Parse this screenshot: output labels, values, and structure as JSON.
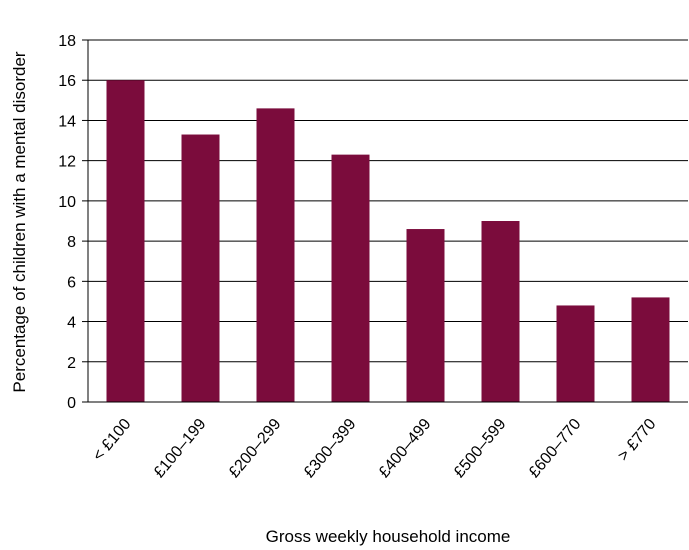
{
  "chart_data": {
    "type": "bar",
    "categories": [
      "< £100",
      "£100–199",
      "£200–299",
      "£300–399",
      "£400–499",
      "£500–599",
      "£600–770",
      "> £770"
    ],
    "values": [
      16.0,
      13.3,
      14.6,
      12.3,
      8.6,
      9.0,
      4.8,
      5.2
    ],
    "xlabel": "Gross weekly household income",
    "ylabel": "Percentage of children with a mental disorder",
    "ylim": [
      0,
      18
    ],
    "yticks": [
      0,
      2,
      4,
      6,
      8,
      10,
      12,
      14,
      16,
      18
    ],
    "grid": true,
    "colors": {
      "bar": "#7b0c3c",
      "grid": "#000000"
    }
  }
}
